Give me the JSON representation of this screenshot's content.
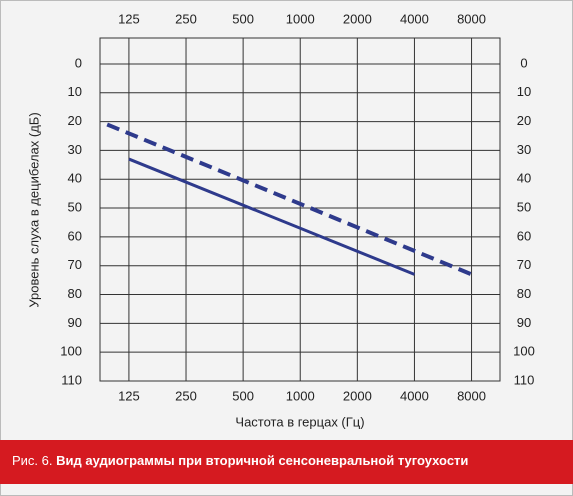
{
  "chart_data": {
    "type": "line",
    "x_label": "Частота в герцах (Гц)",
    "y_label": "Уровень слуха в децибелах (дБ)",
    "caption_prefix": "Рис. 6.",
    "caption": "Вид аудиограммы при вторичной сенсоневральной тугоухости",
    "xscale": "log",
    "xlim": [
      88,
      11300
    ],
    "xticks": [
      125,
      250,
      500,
      1000,
      2000,
      4000,
      8000
    ],
    "ylim": [
      -9,
      110
    ],
    "yticks": [
      0,
      10,
      20,
      30,
      40,
      50,
      60,
      70,
      80,
      90,
      100,
      110
    ],
    "y_inverted": true,
    "grid": true,
    "series": [
      {
        "x": [
          125,
          4000
        ],
        "values": [
          33,
          73
        ],
        "color": "#2e3a8c",
        "dash": false
      },
      {
        "x": [
          96,
          8000
        ],
        "values": [
          21,
          73
        ],
        "color": "#2e3a8c",
        "dash": true
      }
    ]
  }
}
